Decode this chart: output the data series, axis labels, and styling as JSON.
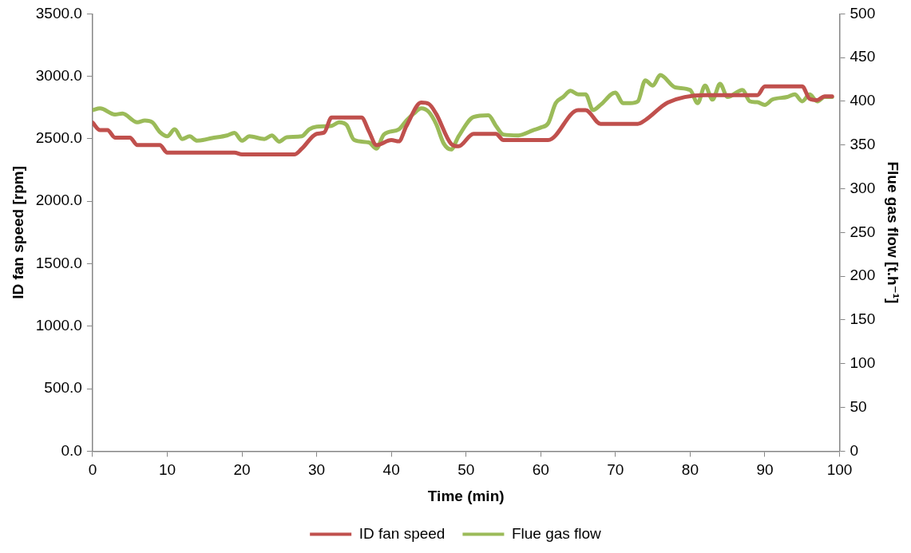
{
  "chart_data": {
    "type": "line",
    "xlabel": "Time (min)",
    "ylabel": "ID fan speed [rpm]",
    "y2label": "Flue gas flow [t.h⁻¹]",
    "xlim": [
      0,
      100
    ],
    "xticks": [
      0,
      10,
      20,
      30,
      40,
      50,
      60,
      70,
      80,
      90,
      100
    ],
    "ylim": [
      0,
      3500
    ],
    "yticks": [
      {
        "value": 0,
        "label": "0.0"
      },
      {
        "value": 500,
        "label": "500.0"
      },
      {
        "value": 1000,
        "label": "1000.0"
      },
      {
        "value": 1500,
        "label": "1500.0"
      },
      {
        "value": 2000,
        "label": "2000.0"
      },
      {
        "value": 2500,
        "label": "2500.0"
      },
      {
        "value": 3000,
        "label": "3000.0"
      },
      {
        "value": 3500,
        "label": "3500.0"
      }
    ],
    "y2lim": [
      0,
      500
    ],
    "y2ticks": [
      0,
      50,
      100,
      150,
      200,
      250,
      300,
      350,
      400,
      450,
      500
    ],
    "grid": false,
    "legend": "bottom",
    "marker": "none",
    "line_style": "solid",
    "series": [
      {
        "name": "ID fan speed",
        "color": "#c0504d",
        "x": [
          0,
          1,
          2,
          3,
          5,
          6,
          9,
          10,
          19,
          20,
          27,
          28,
          30,
          31,
          32,
          36,
          37,
          38,
          40,
          41,
          42,
          44,
          45,
          46,
          48,
          49,
          51,
          54,
          55,
          61,
          65,
          66,
          68,
          73,
          74,
          77,
          82,
          89,
          90,
          95,
          96,
          97,
          98,
          99
        ],
        "values": [
          2630,
          2570,
          2570,
          2510,
          2510,
          2450,
          2450,
          2390,
          2390,
          2375,
          2375,
          2420,
          2540,
          2550,
          2670,
          2670,
          2560,
          2450,
          2490,
          2480,
          2600,
          2790,
          2780,
          2700,
          2460,
          2440,
          2540,
          2540,
          2490,
          2490,
          2730,
          2730,
          2620,
          2620,
          2650,
          2790,
          2850,
          2850,
          2920,
          2920,
          2820,
          2810,
          2840,
          2840
        ]
      },
      {
        "name": "Flue gas flow",
        "color": "#9bbb59",
        "axis": "y2",
        "x": [
          0,
          1,
          3,
          4,
          6,
          7,
          8,
          9,
          10,
          11,
          12,
          13,
          14,
          16,
          18,
          19,
          20,
          21,
          23,
          24,
          25,
          26,
          28,
          29,
          30,
          32,
          33,
          34,
          35,
          37,
          38,
          39,
          41,
          42,
          43,
          44,
          45,
          46,
          47,
          48,
          49,
          51,
          53,
          54,
          55,
          57,
          59,
          60,
          61,
          62,
          63,
          64,
          65,
          66,
          67,
          68,
          70,
          71,
          72,
          73,
          74,
          75,
          76,
          78,
          80,
          81,
          82,
          83,
          84,
          85,
          87,
          88,
          89,
          90,
          91,
          93,
          94,
          95,
          96,
          97,
          98,
          99
        ],
        "values": [
          390,
          392,
          385,
          386,
          376,
          378,
          376,
          365,
          360,
          368,
          357,
          360,
          355,
          358,
          361,
          364,
          355,
          360,
          357,
          361,
          354,
          359,
          360,
          368,
          371,
          372,
          376,
          373,
          356,
          353,
          346,
          362,
          368,
          378,
          386,
          392,
          388,
          374,
          352,
          345,
          360,
          382,
          384,
          372,
          362,
          361,
          367,
          370,
          375,
          398,
          405,
          412,
          408,
          408,
          390,
          396,
          410,
          398,
          398,
          400,
          424,
          418,
          430,
          416,
          413,
          398,
          418,
          402,
          420,
          405,
          413,
          400,
          399,
          396,
          402,
          405,
          408,
          400,
          408,
          400,
          405,
          405
        ]
      }
    ]
  }
}
